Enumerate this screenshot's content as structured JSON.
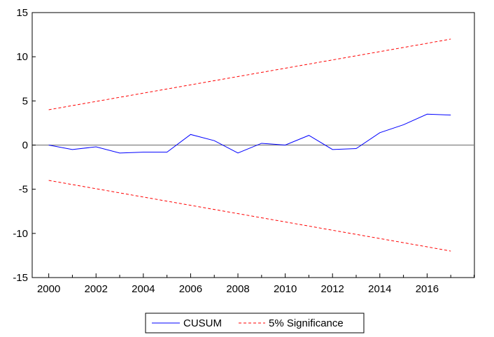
{
  "chart_data": {
    "type": "line",
    "title": "",
    "xlabel": "",
    "ylabel": "",
    "x": [
      2000,
      2001,
      2002,
      2003,
      2004,
      2005,
      2006,
      2007,
      2008,
      2009,
      2010,
      2011,
      2012,
      2013,
      2014,
      2015,
      2016,
      2017
    ],
    "xlim": [
      1999.3,
      2018.0
    ],
    "ylim": [
      -15,
      15
    ],
    "x_ticks": [
      2000,
      2002,
      2004,
      2006,
      2008,
      2010,
      2012,
      2014,
      2016
    ],
    "x_tick_labels": [
      "2000",
      "2002",
      "2004",
      "2006",
      "2008",
      "2010",
      "2012",
      "2014",
      "2016"
    ],
    "y_ticks": [
      15,
      10,
      5,
      0,
      -5,
      -10,
      -15
    ],
    "y_tick_labels": [
      "15",
      "10",
      "5",
      "0",
      "-5",
      "-10",
      "-15"
    ],
    "zero_line": true,
    "grid": false,
    "legend_position": "bottom-center",
    "series": [
      {
        "name": "CUSUM",
        "color": "#0000ff",
        "style": "solid",
        "values": [
          0.0,
          -0.5,
          -0.2,
          -0.9,
          -0.8,
          -0.8,
          1.2,
          0.5,
          -0.9,
          0.2,
          0.0,
          1.1,
          -0.5,
          -0.4,
          1.4,
          2.3,
          3.5,
          3.4
        ]
      },
      {
        "name": "5% Significance",
        "color": "#ff0000",
        "style": "dashed",
        "values": [
          4.0,
          4.47,
          4.94,
          5.41,
          5.88,
          6.35,
          6.82,
          7.29,
          7.76,
          8.23,
          8.7,
          9.17,
          9.64,
          10.11,
          10.58,
          11.05,
          11.52,
          12.0
        ]
      },
      {
        "name": "",
        "color": "#ff0000",
        "style": "dashed",
        "values": [
          -4.0,
          -4.47,
          -4.94,
          -5.41,
          -5.88,
          -6.35,
          -6.82,
          -7.29,
          -7.76,
          -8.23,
          -8.7,
          -9.17,
          -9.64,
          -10.11,
          -10.58,
          -11.05,
          -11.52,
          -12.0
        ]
      }
    ],
    "legend": [
      {
        "label": "CUSUM",
        "color": "#0000ff",
        "style": "solid"
      },
      {
        "label": "5% Significance",
        "color": "#ff0000",
        "style": "dashed"
      }
    ]
  }
}
